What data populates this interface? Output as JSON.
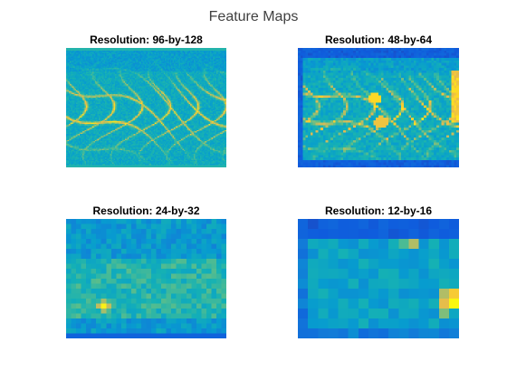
{
  "figure": {
    "title": "Feature Maps"
  },
  "chart_data": [
    {
      "type": "heatmap",
      "title": "Resolution: 96-by-128",
      "rows": 96,
      "cols": 128,
      "xlabel": "",
      "ylabel": "",
      "grid": false,
      "colormap": "parula"
    },
    {
      "type": "heatmap",
      "title": "Resolution: 48-by-64",
      "rows": 48,
      "cols": 64,
      "xlabel": "",
      "ylabel": "",
      "grid": false,
      "colormap": "parula"
    },
    {
      "type": "heatmap",
      "title": "Resolution: 24-by-32",
      "rows": 24,
      "cols": 32,
      "xlabel": "",
      "ylabel": "",
      "grid": false,
      "colormap": "parula"
    },
    {
      "type": "heatmap",
      "title": "Resolution: 12-by-16",
      "rows": 12,
      "cols": 16,
      "xlabel": "",
      "ylabel": "",
      "grid": false,
      "colormap": "parula"
    }
  ]
}
